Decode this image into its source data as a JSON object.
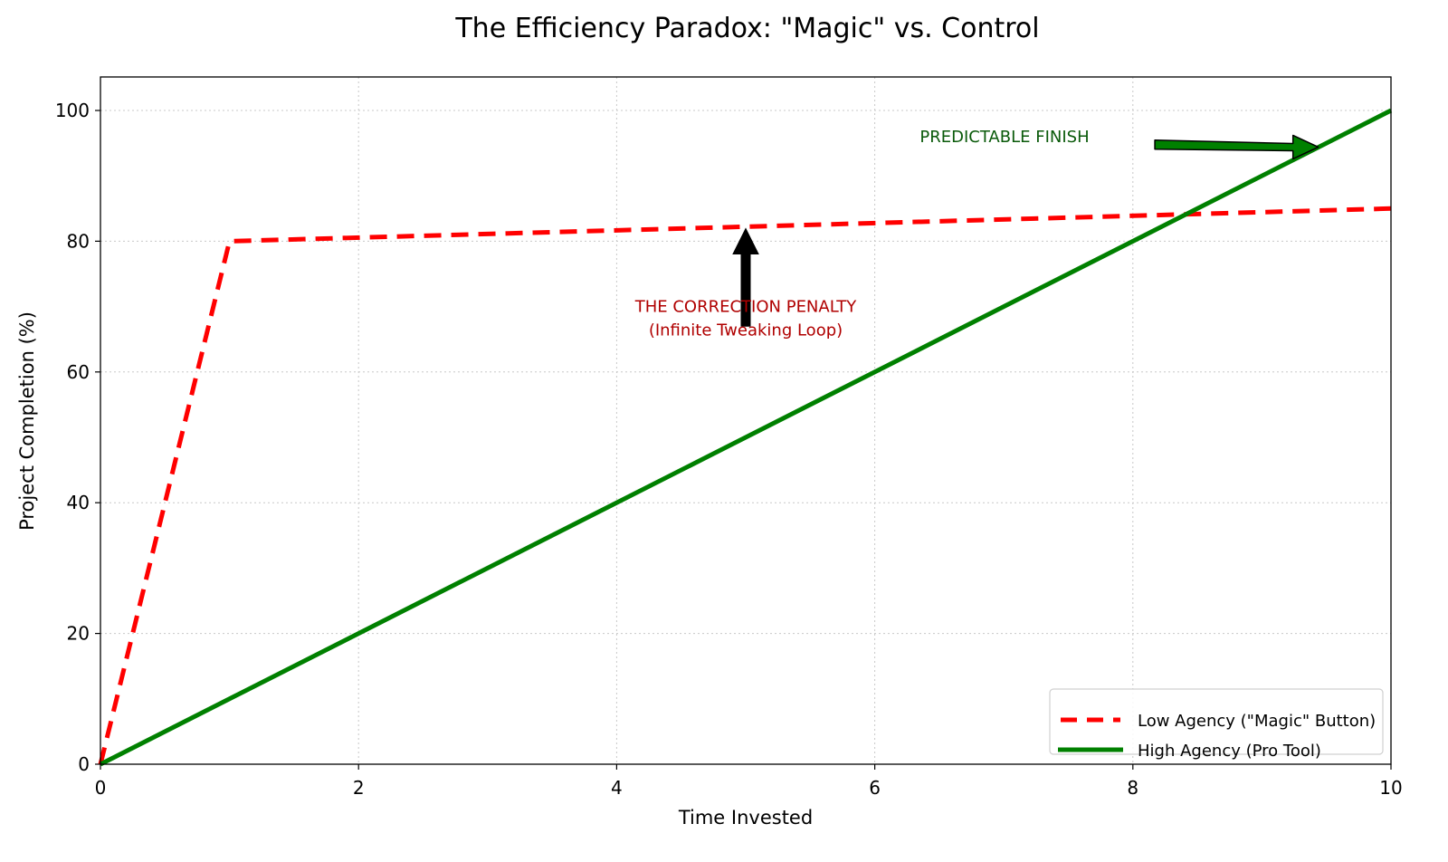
{
  "chart_data": {
    "type": "line",
    "title": "The Efficiency Paradox: \"Magic\" vs. Control",
    "xlabel": "Time Invested",
    "ylabel": "Project Completion (%)",
    "xlim": [
      0,
      10
    ],
    "ylim": [
      0,
      105
    ],
    "xticks": [
      0,
      2,
      4,
      6,
      8,
      10
    ],
    "yticks": [
      0,
      20,
      40,
      60,
      80,
      100
    ],
    "grid": true,
    "legend_position": "lower right",
    "series": [
      {
        "name": "Low Agency (\"Magic\" Button)",
        "color": "#ff0000",
        "style": "dashed",
        "x": [
          0,
          1,
          10
        ],
        "y": [
          0,
          80,
          85
        ]
      },
      {
        "name": "High Agency (Pro Tool)",
        "color": "#008000",
        "style": "solid",
        "x": [
          0,
          10
        ],
        "y": [
          0,
          100
        ]
      }
    ],
    "annotations": [
      {
        "text_line1": "THE CORRECTION PENALTY",
        "text_line2": "(Infinite Tweaking Loop)",
        "color": "#b00000",
        "text_xy": [
          5,
          62
        ],
        "arrow_from": [
          5,
          67
        ],
        "arrow_to": [
          5,
          82.2
        ],
        "arrow_color": "#000000"
      },
      {
        "text_line1": "PREDICTABLE FINISH",
        "color": "#0a5a0a",
        "text_xy": [
          7,
          96
        ],
        "arrow_from": [
          8.1,
          94.5
        ],
        "arrow_to": [
          9.5,
          95.5
        ],
        "arrow_color": "#008000"
      }
    ]
  }
}
